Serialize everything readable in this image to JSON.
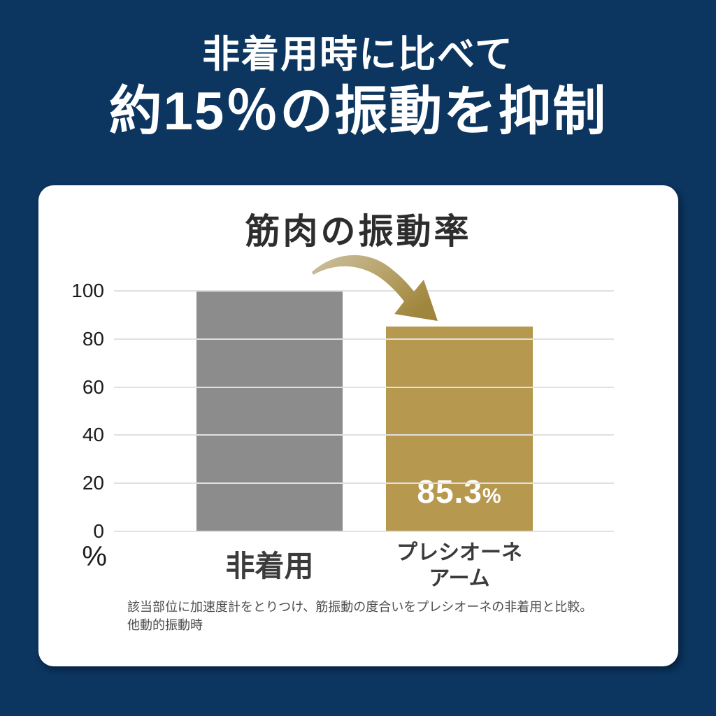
{
  "colors": {
    "background_navy": "#0c355f",
    "card_white": "#ffffff",
    "headline_text": "#ffffff",
    "title_text": "#2d2d2d",
    "gridline": "#e0e0e0",
    "footnote_text": "#4d4d4d",
    "arrow_gradient_light": "#ccc0a1",
    "arrow_gradient_dark": "#a0863c"
  },
  "headline": {
    "line1": "非着用時に比べて",
    "line2": "約15％の振動を抑制"
  },
  "chart_data": {
    "type": "bar",
    "title": "筋肉の振動率",
    "categories": [
      "非着用",
      "プレシオーネ\nアーム"
    ],
    "values": [
      100,
      85.3
    ],
    "bar_colors": [
      "#8c8c8c",
      "#b6994f"
    ],
    "yticks": [
      100,
      80,
      60,
      40,
      20,
      0
    ],
    "ylim": [
      0,
      100
    ],
    "axis_unit": "%",
    "grid": true,
    "legend": false,
    "value_label": {
      "number": "85.3",
      "unit": "%"
    },
    "annotation_arrow": {
      "from": "非着用",
      "to": "プレシオーネ\nアーム",
      "direction": "down-right"
    }
  },
  "footnote": {
    "line1": "該当部位に加速度計をとりつけ、筋振動の度合いをプレシオーネの非着用と比較。",
    "line2": "他動的振動時"
  }
}
